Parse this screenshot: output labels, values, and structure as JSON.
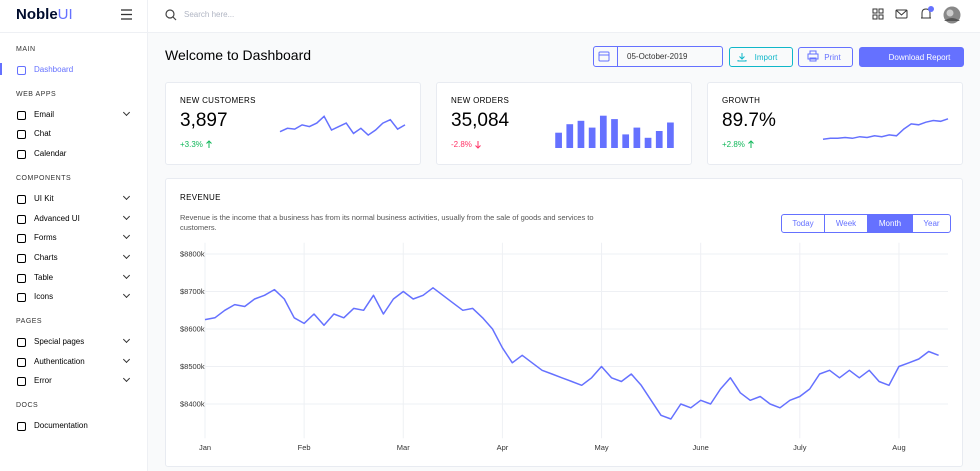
{
  "logo": {
    "brand": "Noble",
    "accent": "UI"
  },
  "search_placeholder": "Search here...",
  "sidebar": {
    "sections": [
      {
        "title": "MAIN",
        "items": [
          {
            "label": "Dashboard",
            "submenu": false
          }
        ]
      },
      {
        "title": "WEB APPS",
        "items": [
          {
            "label": "Email",
            "submenu": true
          },
          {
            "label": "Chat",
            "submenu": false
          },
          {
            "label": "Calendar",
            "submenu": false
          }
        ]
      },
      {
        "title": "COMPONENTS",
        "items": [
          {
            "label": "UI Kit",
            "submenu": true
          },
          {
            "label": "Advanced UI",
            "submenu": true
          },
          {
            "label": "Forms",
            "submenu": true
          },
          {
            "label": "Charts",
            "submenu": true
          },
          {
            "label": "Table",
            "submenu": true
          },
          {
            "label": "Icons",
            "submenu": true
          }
        ]
      },
      {
        "title": "PAGES",
        "items": [
          {
            "label": "Special pages",
            "submenu": true
          },
          {
            "label": "Authentication",
            "submenu": true
          },
          {
            "label": "Error",
            "submenu": true
          }
        ]
      },
      {
        "title": "DOCS",
        "items": [
          {
            "label": "Documentation",
            "submenu": false
          }
        ]
      }
    ]
  },
  "header": {
    "title": "Welcome to Dashboard",
    "date": "05-October-2019",
    "buttons": [
      "Import",
      "Print",
      "Download Report"
    ]
  },
  "cards": [
    {
      "title": "NEW CUSTOMERS",
      "value": "3,897",
      "change": "+3.3%",
      "trend": "up",
      "chart": {
        "type": "line",
        "color": "#6571ff",
        "ylim": [
          0,
          35
        ],
        "values": [
          12,
          16,
          15,
          20,
          18,
          22,
          30,
          14,
          18,
          22,
          10,
          16,
          8,
          14,
          22,
          26,
          15,
          20
        ]
      }
    },
    {
      "title": "NEW ORDERS",
      "value": "35,084",
      "change": "-2.8%",
      "trend": "down",
      "chart": {
        "type": "bar",
        "color": "#6571ff",
        "ylim": [
          0,
          100
        ],
        "values": [
          45,
          70,
          80,
          60,
          95,
          85,
          40,
          60,
          30,
          50,
          75
        ]
      }
    },
    {
      "title": "GROWTH",
      "value": "89.7%",
      "change": "+2.8%",
      "trend": "up",
      "chart": {
        "type": "line",
        "color": "#6571ff",
        "ylim": [
          0,
          40
        ],
        "values": [
          8,
          9,
          9,
          10,
          9,
          11,
          10,
          12,
          11,
          13,
          12,
          20,
          26,
          25,
          28,
          30,
          29,
          32
        ]
      }
    }
  ],
  "revenue": {
    "title": "REVENUE",
    "description": "Revenue is the income that a business has from its normal business activities, usually from the sale of goods and services to customers.",
    "periods": [
      "Today",
      "Week",
      "Month",
      "Year"
    ],
    "chart_data": {
      "type": "line",
      "color": "#6571ff",
      "grid": true,
      "ylim": [
        8330,
        8830
      ],
      "yticks": [
        {
          "value": 8800,
          "label": "$8800k"
        },
        {
          "value": 8700,
          "label": "$8700k"
        },
        {
          "value": 8600,
          "label": "$8600k"
        },
        {
          "value": 8500,
          "label": "$8500k"
        },
        {
          "value": 8400,
          "label": "$8400k"
        }
      ],
      "xlim": [
        0,
        74
      ],
      "xticks": [
        {
          "value": 0,
          "label": "Jan"
        },
        {
          "value": 10,
          "label": "Feb"
        },
        {
          "value": 20,
          "label": "Mar"
        },
        {
          "value": 30,
          "label": "Apr"
        },
        {
          "value": 40,
          "label": "May"
        },
        {
          "value": 50,
          "label": "June"
        },
        {
          "value": 60,
          "label": "July"
        },
        {
          "value": 70,
          "label": "Aug"
        }
      ],
      "values": [
        8625,
        8630,
        8650,
        8665,
        8660,
        8680,
        8690,
        8705,
        8680,
        8630,
        8615,
        8640,
        8610,
        8640,
        8630,
        8655,
        8650,
        8690,
        8640,
        8680,
        8700,
        8680,
        8690,
        8710,
        8690,
        8670,
        8650,
        8655,
        8630,
        8600,
        8550,
        8510,
        8530,
        8510,
        8490,
        8480,
        8470,
        8460,
        8450,
        8470,
        8500,
        8470,
        8460,
        8480,
        8450,
        8410,
        8370,
        8360,
        8400,
        8390,
        8410,
        8400,
        8440,
        8470,
        8430,
        8410,
        8420,
        8400,
        8390,
        8410,
        8420,
        8440,
        8480,
        8490,
        8470,
        8490,
        8470,
        8490,
        8460,
        8450,
        8500,
        8510,
        8520,
        8540,
        8530
      ]
    }
  }
}
